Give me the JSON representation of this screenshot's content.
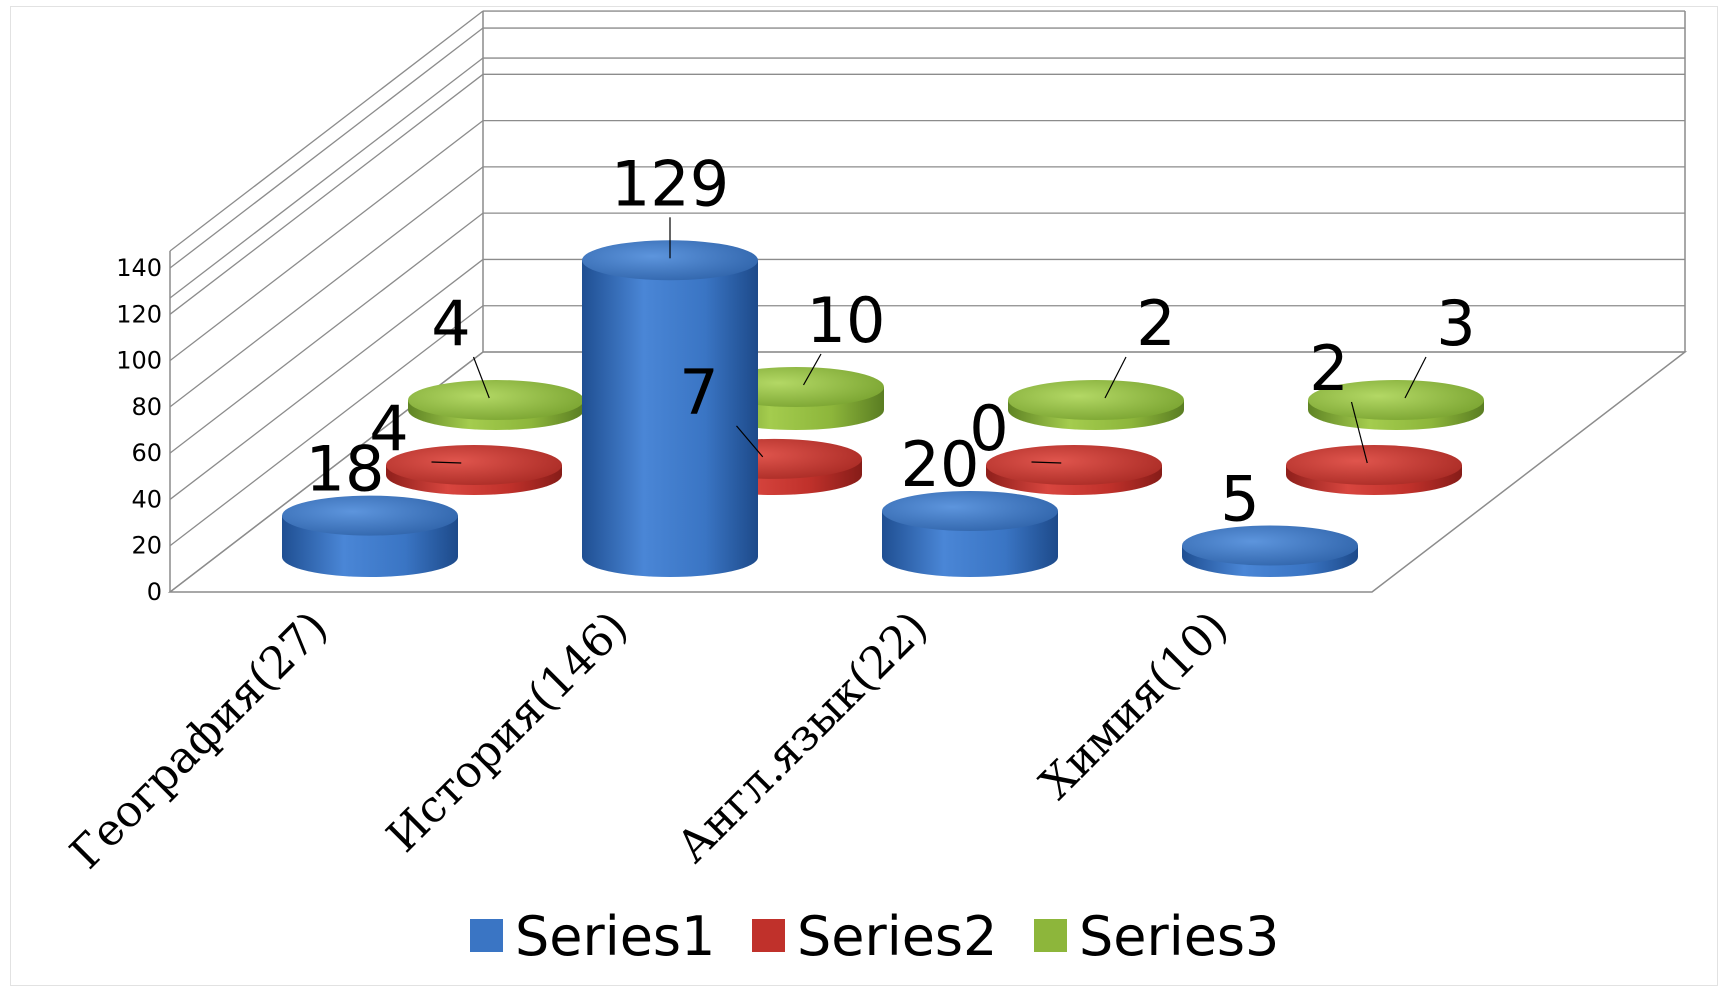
{
  "chart_data": {
    "type": "bar",
    "style": "3d-cylinder",
    "categories": [
      "География(27)",
      "История(146)",
      "Англ.язык(22)",
      "Химия(10)"
    ],
    "series": [
      {
        "name": "Series1",
        "values": [
          18,
          129,
          20,
          5
        ],
        "color": "#3a75c4"
      },
      {
        "name": "Series2",
        "values": [
          4,
          7,
          0,
          2
        ],
        "color": "#c0312b"
      },
      {
        "name": "Series3",
        "values": [
          4,
          10,
          2,
          3
        ],
        "color": "#8db63b"
      }
    ],
    "y_ticks": [
      "0",
      "20",
      "40",
      "60",
      "80",
      "100",
      "120",
      "140"
    ],
    "ylim": [
      0,
      140
    ],
    "grid": true,
    "legend_position": "bottom",
    "title": "",
    "xlabel": "",
    "ylabel": ""
  }
}
